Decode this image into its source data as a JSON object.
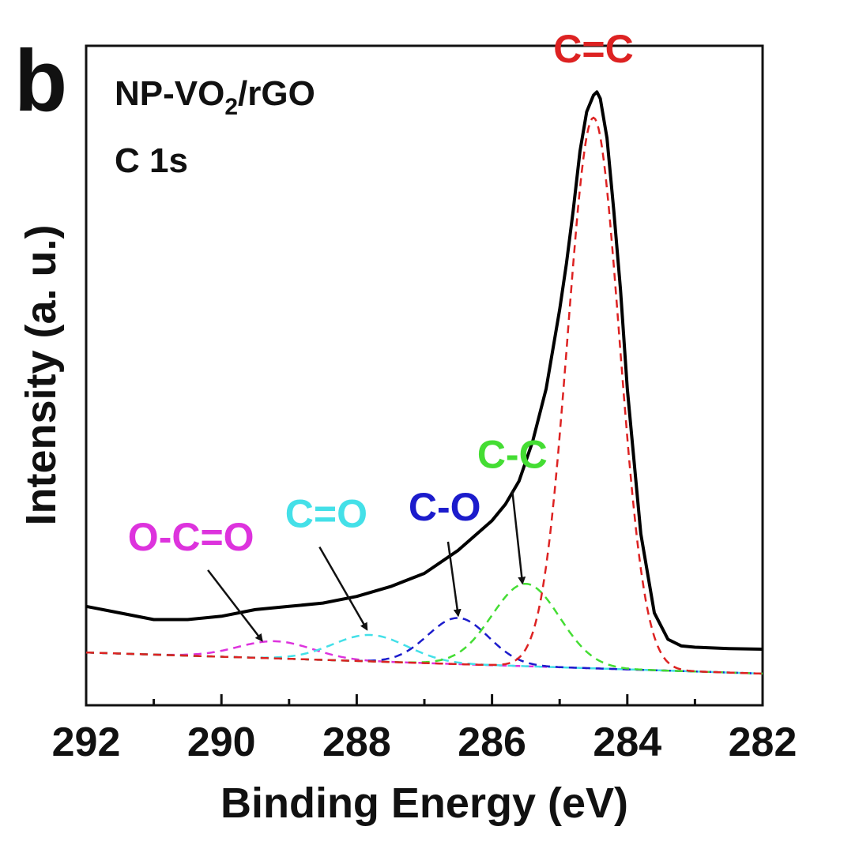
{
  "panel_label": "b",
  "chart_data": {
    "type": "line",
    "title": "",
    "xlabel": "Binding Energy (eV)",
    "ylabel": "Intensity (a. u.)",
    "xlim": [
      292,
      282
    ],
    "x_reversed": true,
    "ylim": [
      0,
      100
    ],
    "y_ticks_shown": false,
    "x_ticks": [
      292,
      290,
      288,
      286,
      284,
      282
    ],
    "x_tick_labels": [
      "292",
      "290",
      "288",
      "286",
      "284",
      "282"
    ],
    "legend": "none",
    "annotations": {
      "sample_prefix": "NP-VO",
      "sample_subscript": "2",
      "sample_suffix": "/rGO",
      "region": "C 1s"
    },
    "measured": {
      "color": "#000000",
      "x": [
        292,
        291.5,
        291,
        290.5,
        290,
        289.5,
        289,
        288.5,
        288,
        287.5,
        287,
        286.5,
        286,
        285.8,
        285.6,
        285.4,
        285.2,
        285.0,
        284.9,
        284.8,
        284.7,
        284.6,
        284.5,
        284.45,
        284.4,
        284.3,
        284.2,
        284.1,
        284.0,
        283.8,
        283.6,
        283.4,
        283.2,
        283.0,
        282.5,
        282
      ],
      "y": [
        15.0,
        14.0,
        13.0,
        13.0,
        13.5,
        14.5,
        15.0,
        15.5,
        16.5,
        18.0,
        20.0,
        23.5,
        28.0,
        30.5,
        34.0,
        40.0,
        48.0,
        60.0,
        67.0,
        75.0,
        84.0,
        90.0,
        92.5,
        93.0,
        92.0,
        86.0,
        75.0,
        63.0,
        48.0,
        26.0,
        14.0,
        10.0,
        9.0,
        8.8,
        8.6,
        8.5
      ]
    },
    "components": [
      {
        "name": "O-C=O",
        "color": "#dd33dd",
        "center": 289.2,
        "height": 2.6,
        "width": 0.55,
        "label_x": 290.45,
        "label_y": 23.5,
        "arrow_from": [
          290.2,
          20.5
        ],
        "arrow_to": [
          289.4,
          9.8
        ]
      },
      {
        "name": "C=O",
        "color": "#44e0e8",
        "center": 287.8,
        "height": 4.0,
        "width": 0.55,
        "label_x": 288.45,
        "label_y": 27.0,
        "arrow_from": [
          288.55,
          24.0
        ],
        "arrow_to": [
          287.85,
          11.5
        ]
      },
      {
        "name": "C-O",
        "color": "#1c1ccc",
        "center": 286.5,
        "height": 7.0,
        "width": 0.45,
        "label_x": 286.7,
        "label_y": 28.0,
        "arrow_from": [
          286.65,
          24.8
        ],
        "arrow_to": [
          286.5,
          13.6
        ]
      },
      {
        "name": "C-C",
        "color": "#44dd33",
        "center": 285.5,
        "height": 12.5,
        "width": 0.5,
        "label_x": 285.7,
        "label_y": 36.0,
        "arrow_from": [
          285.7,
          32.5
        ],
        "arrow_to": [
          285.55,
          18.5
        ]
      },
      {
        "name": "C=C",
        "color": "#dd2222",
        "center": 284.5,
        "height": 83.5,
        "width": 0.38,
        "label_x": 284.5,
        "label_y": 97.5
      }
    ],
    "baseline": {
      "start": 8.0,
      "end": 4.8
    }
  }
}
